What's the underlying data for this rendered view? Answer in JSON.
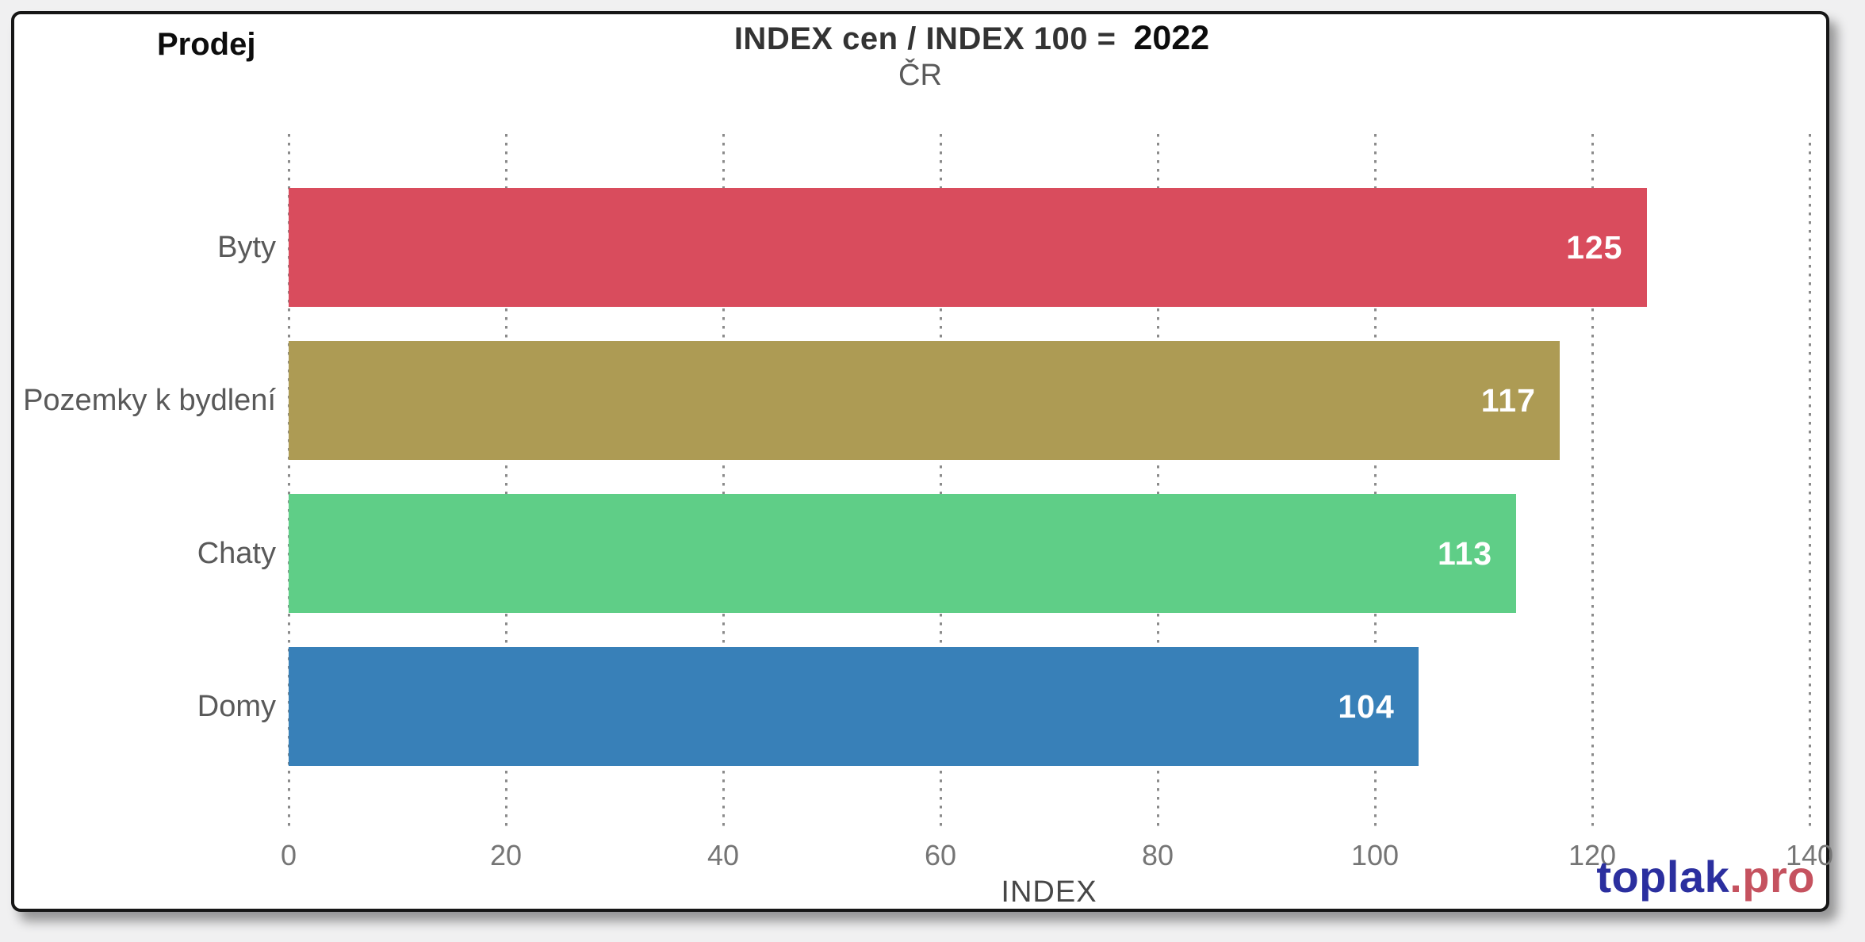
{
  "header": {
    "left_label": "Prodej",
    "title_main": "INDEX cen / INDEX 100 =",
    "title_year": "2022",
    "subtitle": "ČR"
  },
  "chart_data": {
    "type": "bar",
    "orientation": "horizontal",
    "title": "INDEX cen / INDEX 100 = 2022",
    "subtitle": "ČR",
    "categories": [
      "Byty",
      "Pozemky k bydlení",
      "Chaty",
      "Domy"
    ],
    "values": [
      125,
      117,
      113,
      104
    ],
    "bar_colors": [
      "#d94c5d",
      "#ad9b54",
      "#5fce87",
      "#3880b8"
    ],
    "value_label_color": "#ffffff",
    "xlabel": "INDEX",
    "x_ticks": [
      "0",
      "20",
      "40",
      "60",
      "80",
      "100",
      "120",
      "140"
    ],
    "xlim": [
      0,
      140
    ],
    "grid": "dotted-vertical-gridlines",
    "legend": "none"
  },
  "footer": {
    "logo_primary": "toplak",
    "logo_suffix": ".pro",
    "logo_primary_color": "#2b2f9f",
    "logo_suffix_color": "#c5525f"
  }
}
